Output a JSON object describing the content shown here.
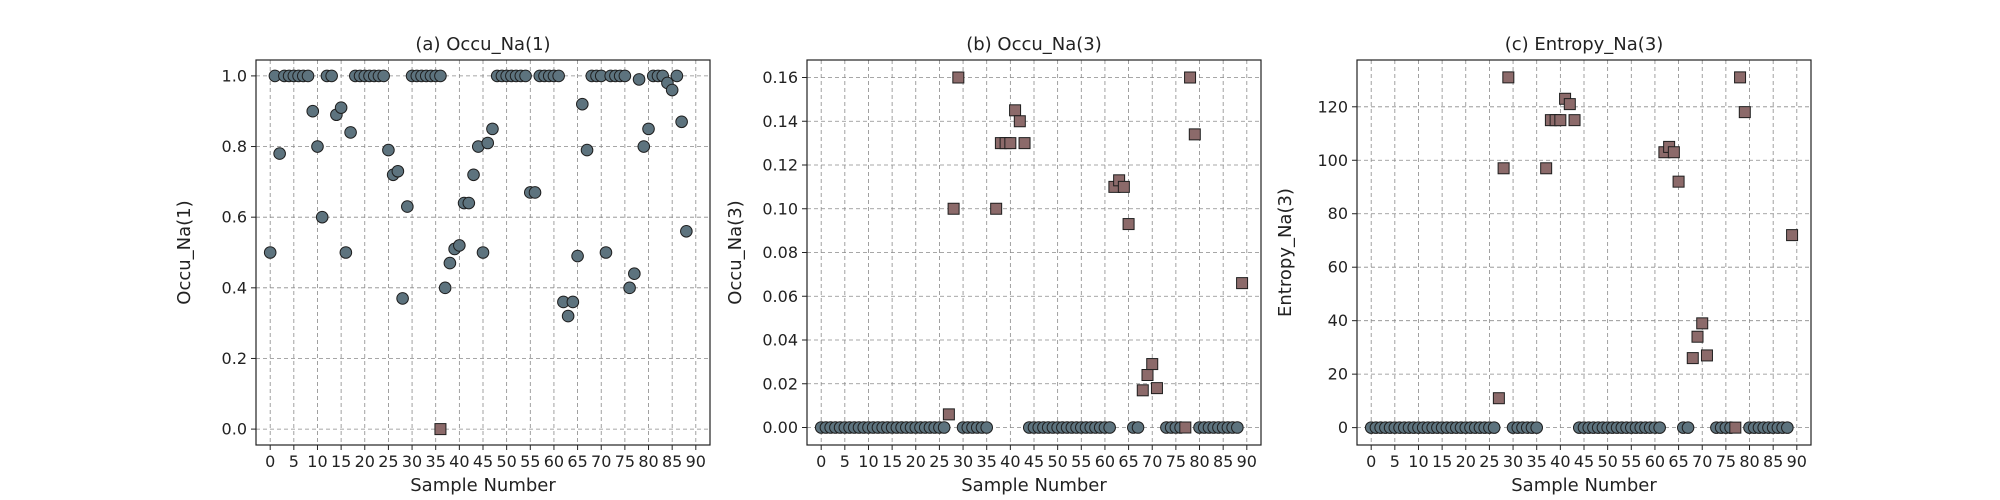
{
  "chart_data": [
    {
      "type": "scatter",
      "title": "(a) Occu_Na(1)",
      "xlabel": "Sample Number",
      "ylabel": "Occu_Na(1)",
      "xlim": [
        -3,
        93
      ],
      "ylim": [
        -0.045,
        1.045
      ],
      "xticks": [
        0,
        5,
        10,
        15,
        20,
        25,
        30,
        35,
        40,
        45,
        50,
        55,
        60,
        65,
        70,
        75,
        80,
        85,
        90
      ],
      "yticks": [
        0.0,
        0.2,
        0.4,
        0.6,
        0.8,
        1.0
      ],
      "ytick_labels": [
        "0.0",
        "0.2",
        "0.4",
        "0.6",
        "0.8",
        "1.0"
      ],
      "grid": true,
      "series": [
        {
          "marker": "circle",
          "color": "#5d737e",
          "x": [
            0,
            1,
            2,
            3,
            4,
            5,
            6,
            7,
            8,
            9,
            10,
            11,
            12,
            13,
            14,
            15,
            16,
            17,
            18,
            19,
            20,
            21,
            22,
            23,
            24,
            25,
            26,
            27,
            28,
            29,
            30,
            31,
            32,
            33,
            34,
            35,
            36,
            37,
            38,
            39,
            40,
            41,
            42,
            43,
            44,
            45,
            46,
            47,
            48,
            49,
            50,
            51,
            52,
            53,
            54,
            55,
            56,
            57,
            58,
            59,
            60,
            61,
            62,
            63,
            64,
            65,
            66,
            67,
            68,
            69,
            70,
            71,
            72,
            73,
            74,
            75,
            76,
            77,
            78,
            79,
            80,
            81,
            82,
            83,
            84,
            85,
            86,
            87,
            88,
            89
          ],
          "y": [
            0.5,
            1.0,
            0.78,
            1.0,
            1.0,
            1.0,
            1.0,
            1.0,
            1.0,
            0.9,
            0.8,
            0.6,
            1.0,
            1.0,
            0.89,
            0.91,
            0.5,
            0.84,
            1.0,
            1.0,
            1.0,
            1.0,
            1.0,
            1.0,
            1.0,
            0.79,
            0.72,
            0.73,
            0.37,
            0.63,
            1.0,
            1.0,
            1.0,
            1.0,
            1.0,
            1.0,
            1.0,
            0.4,
            0.47,
            0.51,
            0.52,
            0.64,
            0.64,
            0.72,
            0.8,
            0.5,
            0.81,
            0.85,
            1.0,
            1.0,
            1.0,
            1.0,
            1.0,
            1.0,
            1.0,
            0.67,
            0.67,
            1.0,
            1.0,
            1.0,
            1.0,
            1.0,
            0.36,
            0.32,
            0.36,
            0.49,
            0.92,
            0.79,
            1.0,
            1.0,
            1.0,
            0.5,
            1.0,
            1.0,
            1.0,
            1.0,
            0.4,
            0.44,
            0.99,
            0.8,
            0.85,
            1.0,
            1.0,
            1.0,
            0.98,
            0.96,
            1.0,
            0.87,
            0.56,
            null
          ]
        },
        {
          "marker": "square",
          "color": "#8c6a6a",
          "x": [
            36
          ],
          "y": [
            0.0
          ]
        }
      ]
    },
    {
      "type": "scatter",
      "title": "(b) Occu_Na(3)",
      "xlabel": "Sample Number",
      "ylabel": "Occu_Na(3)",
      "xlim": [
        -3,
        93
      ],
      "ylim": [
        -0.008,
        0.168
      ],
      "xticks": [
        0,
        5,
        10,
        15,
        20,
        25,
        30,
        35,
        40,
        45,
        50,
        55,
        60,
        65,
        70,
        75,
        80,
        85,
        90
      ],
      "yticks": [
        0.0,
        0.02,
        0.04,
        0.06,
        0.08,
        0.1,
        0.12,
        0.14,
        0.16
      ],
      "ytick_labels": [
        "0.00",
        "0.02",
        "0.04",
        "0.06",
        "0.08",
        "0.10",
        "0.12",
        "0.14",
        "0.16"
      ],
      "grid": true,
      "series": [
        {
          "marker": "circle",
          "color": "#5d737e",
          "x": [
            0,
            1,
            2,
            3,
            4,
            5,
            6,
            7,
            8,
            9,
            10,
            11,
            12,
            13,
            14,
            15,
            16,
            17,
            18,
            19,
            20,
            21,
            22,
            23,
            24,
            25,
            26,
            30,
            31,
            32,
            33,
            34,
            35,
            44,
            45,
            46,
            47,
            48,
            49,
            50,
            51,
            52,
            53,
            54,
            55,
            56,
            57,
            58,
            59,
            60,
            61,
            66,
            67,
            73,
            74,
            75,
            76,
            80,
            81,
            82,
            83,
            84,
            85,
            86,
            87,
            88
          ],
          "y": [
            0,
            0,
            0,
            0,
            0,
            0,
            0,
            0,
            0,
            0,
            0,
            0,
            0,
            0,
            0,
            0,
            0,
            0,
            0,
            0,
            0,
            0,
            0,
            0,
            0,
            0,
            0,
            0,
            0,
            0,
            0,
            0,
            0,
            0,
            0,
            0,
            0,
            0,
            0,
            0,
            0,
            0,
            0,
            0,
            0,
            0,
            0,
            0,
            0,
            0,
            0,
            0,
            0,
            0,
            0,
            0,
            0,
            0,
            0,
            0,
            0,
            0,
            0,
            0,
            0,
            0
          ]
        },
        {
          "marker": "square",
          "color": "#8c6a6a",
          "x": [
            27,
            28,
            29,
            37,
            38,
            39,
            40,
            41,
            42,
            43,
            62,
            63,
            64,
            65,
            68,
            69,
            70,
            71,
            77,
            78,
            79,
            89
          ],
          "y": [
            0.006,
            0.1,
            0.16,
            0.1,
            0.13,
            0.13,
            0.13,
            0.145,
            0.14,
            0.13,
            0.11,
            0.113,
            0.11,
            0.093,
            0.017,
            0.024,
            0.029,
            0.018,
            0.0,
            0.16,
            0.134,
            0.066
          ]
        }
      ]
    },
    {
      "type": "scatter",
      "title": "(c) Entropy_Na(3)",
      "xlabel": "Sample Number",
      "ylabel": "Entropy_Na(3)",
      "xlim": [
        -3,
        93
      ],
      "ylim": [
        -6.5,
        137.5
      ],
      "xticks": [
        0,
        5,
        10,
        15,
        20,
        25,
        30,
        35,
        40,
        45,
        50,
        55,
        60,
        65,
        70,
        75,
        80,
        85,
        90
      ],
      "yticks": [
        0,
        20,
        40,
        60,
        80,
        100,
        120
      ],
      "ytick_labels": [
        "0",
        "20",
        "40",
        "60",
        "80",
        "100",
        "120"
      ],
      "grid": true,
      "series": [
        {
          "marker": "circle",
          "color": "#5d737e",
          "x": [
            0,
            1,
            2,
            3,
            4,
            5,
            6,
            7,
            8,
            9,
            10,
            11,
            12,
            13,
            14,
            15,
            16,
            17,
            18,
            19,
            20,
            21,
            22,
            23,
            24,
            25,
            26,
            30,
            31,
            32,
            33,
            34,
            35,
            44,
            45,
            46,
            47,
            48,
            49,
            50,
            51,
            52,
            53,
            54,
            55,
            56,
            57,
            58,
            59,
            60,
            61,
            66,
            67,
            73,
            74,
            75,
            76,
            80,
            81,
            82,
            83,
            84,
            85,
            86,
            87,
            88
          ],
          "y": [
            0,
            0,
            0,
            0,
            0,
            0,
            0,
            0,
            0,
            0,
            0,
            0,
            0,
            0,
            0,
            0,
            0,
            0,
            0,
            0,
            0,
            0,
            0,
            0,
            0,
            0,
            0,
            0,
            0,
            0,
            0,
            0,
            0,
            0,
            0,
            0,
            0,
            0,
            0,
            0,
            0,
            0,
            0,
            0,
            0,
            0,
            0,
            0,
            0,
            0,
            0,
            0,
            0,
            0,
            0,
            0,
            0,
            0,
            0,
            0,
            0,
            0,
            0,
            0,
            0,
            0
          ]
        },
        {
          "marker": "square",
          "color": "#8c6a6a",
          "x": [
            27,
            28,
            29,
            37,
            38,
            39,
            40,
            41,
            42,
            43,
            62,
            63,
            64,
            65,
            68,
            69,
            70,
            71,
            77,
            78,
            79,
            89
          ],
          "y": [
            11,
            97,
            131,
            97,
            115,
            115,
            115,
            123,
            121,
            115,
            103,
            105,
            103,
            92,
            26,
            34,
            39,
            27,
            0,
            131,
            118,
            72
          ]
        }
      ]
    }
  ]
}
